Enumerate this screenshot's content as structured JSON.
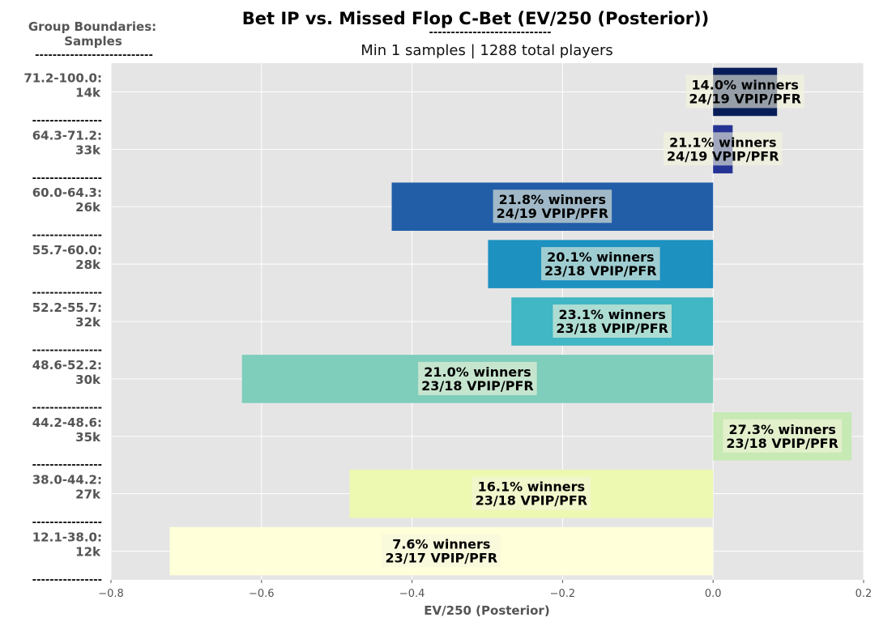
{
  "chart_data": {
    "type": "bar",
    "orientation": "horizontal",
    "title": "Bet IP vs. Missed Flop C-Bet (EV/250 (Posterior))",
    "title_underline": "----------------------------",
    "subtitle": "Min 1 samples | 1288 total players",
    "y_header": "Group Boundaries:",
    "y_header_sub": "Samples",
    "y_header_underline": "---------------------------",
    "separator": "----------------",
    "xlabel": "EV/250 (Posterior)",
    "xlim": [
      -0.8,
      0.2
    ],
    "xticks": [
      "−0.8",
      "−0.6",
      "−0.4",
      "−0.2",
      "0.0",
      "0.2"
    ],
    "tick_values": [
      -0.8,
      -0.6,
      -0.4,
      -0.2,
      0.0,
      0.2
    ],
    "grid": true,
    "legend": "none",
    "bars": [
      {
        "range": "71.2-100.0:",
        "samples": "14k",
        "value": 0.085,
        "winners": "14.0% winners",
        "vpip": "24/19 VPIP/PFR",
        "color": "#081d58"
      },
      {
        "range": "64.3-71.2:",
        "samples": "33k",
        "value": 0.026,
        "winners": "21.1% winners",
        "vpip": "24/19 VPIP/PFR",
        "color": "#253494"
      },
      {
        "range": "60.0-64.3:",
        "samples": "26k",
        "value": -0.427,
        "winners": "21.8% winners",
        "vpip": "24/19 VPIP/PFR",
        "color": "#225ea8"
      },
      {
        "range": "55.7-60.0:",
        "samples": "28k",
        "value": -0.299,
        "winners": "20.1% winners",
        "vpip": "23/18 VPIP/PFR",
        "color": "#1d91c0"
      },
      {
        "range": "52.2-55.7:",
        "samples": "32k",
        "value": -0.268,
        "winners": "23.1% winners",
        "vpip": "23/18 VPIP/PFR",
        "color": "#41b6c4"
      },
      {
        "range": "48.6-52.2:",
        "samples": "30k",
        "value": -0.626,
        "winners": "21.0% winners",
        "vpip": "23/18 VPIP/PFR",
        "color": "#7fcdbb"
      },
      {
        "range": "44.2-48.6:",
        "samples": "35k",
        "value": 0.184,
        "winners": "27.3% winners",
        "vpip": "23/18 VPIP/PFR",
        "color": "#c7e9b4"
      },
      {
        "range": "38.0-44.2:",
        "samples": "27k",
        "value": -0.483,
        "winners": "16.1% winners",
        "vpip": "23/18 VPIP/PFR",
        "color": "#edf8b1"
      },
      {
        "range": "12.1-38.0:",
        "samples": "12k",
        "value": -0.722,
        "winners": "7.6% winners",
        "vpip": "23/17 VPIP/PFR",
        "color": "#ffffd9"
      }
    ]
  }
}
